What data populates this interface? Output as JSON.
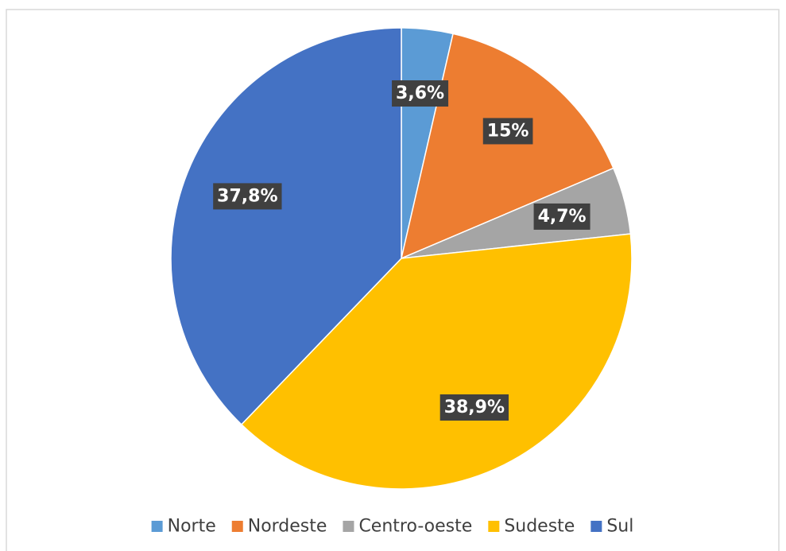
{
  "chart_data": {
    "type": "pie",
    "categories": [
      "Norte",
      "Nordeste",
      "Centro-oeste",
      "Sudeste",
      "Sul"
    ],
    "values": [
      3.6,
      15,
      4.7,
      38.9,
      37.8
    ],
    "value_labels": [
      "3,6%",
      "15%",
      "4,7%",
      "38,9%",
      "37,8%"
    ],
    "colors": [
      "#5b9bd5",
      "#ed7d31",
      "#a5a5a5",
      "#ffc000",
      "#4472c4"
    ],
    "legend": "bottom"
  }
}
